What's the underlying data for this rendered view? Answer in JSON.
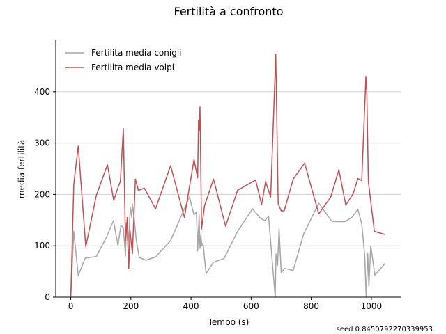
{
  "chart_data": {
    "type": "line",
    "title": "Fertilità a confronto",
    "xlabel": "Tempo (s)",
    "ylabel": "media fertilità",
    "xlim": [
      -50,
      1100
    ],
    "ylim": [
      0,
      500
    ],
    "x_ticks": [
      0,
      200,
      400,
      600,
      800,
      1000
    ],
    "y_ticks": [
      0,
      100,
      200,
      300,
      400
    ],
    "grid": "y",
    "legend_position": "top-left",
    "colors": {
      "conigli": "#a6a6a6",
      "volpi": "#c44e52",
      "grid": "#d0d0d0"
    },
    "series": [
      {
        "name": "Fertilita media conigli",
        "x": [
          0,
          10,
          25,
          48,
          85,
          120,
          142,
          157,
          167,
          175,
          182,
          185,
          190,
          195,
          198,
          203,
          205,
          210,
          218,
          228,
          250,
          282,
          332,
          395,
          410,
          418,
          422,
          427,
          430,
          433,
          436,
          440,
          450,
          475,
          510,
          555,
          605,
          630,
          645,
          658,
          680,
          683,
          688,
          693,
          700,
          712,
          740,
          775,
          825,
          868,
          885,
          912,
          935,
          955,
          968,
          978,
          983,
          988,
          992,
          998,
          1012,
          1045
        ],
        "y": [
          0,
          128,
          42,
          76,
          79,
          118,
          149,
          101,
          140,
          135,
          80,
          145,
          98,
          140,
          175,
          155,
          182,
          160,
          110,
          77,
          72,
          78,
          110,
          195,
          160,
          166,
          90,
          160,
          95,
          120,
          100,
          105,
          46,
          68,
          75,
          128,
          172,
          154,
          149,
          157,
          0,
          84,
          62,
          133,
          48,
          56,
          52,
          123,
          183,
          148,
          147,
          147,
          155,
          171,
          143,
          80,
          0,
          85,
          20,
          100,
          43,
          65
        ]
      },
      {
        "name": "Fertilita media volpi",
        "x": [
          0,
          10,
          25,
          50,
          85,
          122,
          143,
          158,
          165,
          175,
          182,
          188,
          193,
          197,
          205,
          215,
          225,
          245,
          282,
          332,
          378,
          410,
          422,
          425,
          428,
          430,
          435,
          445,
          475,
          515,
          555,
          615,
          635,
          648,
          665,
          682,
          690,
          700,
          710,
          740,
          778,
          825,
          865,
          892,
          915,
          940,
          955,
          968,
          982,
          985,
          990,
          1010,
          1045
        ],
        "y": [
          0,
          220,
          294,
          98,
          198,
          258,
          188,
          215,
          225,
          328,
          110,
          155,
          55,
          130,
          85,
          230,
          208,
          212,
          172,
          256,
          155,
          268,
          232,
          345,
          325,
          370,
          132,
          178,
          230,
          138,
          208,
          228,
          180,
          225,
          195,
          473,
          182,
          168,
          168,
          230,
          261,
          162,
          195,
          248,
          179,
          202,
          231,
          227,
          430,
          395,
          225,
          128,
          122
        ]
      }
    ]
  },
  "footer": {
    "seed_text": "seed 0.8450792270339953"
  }
}
